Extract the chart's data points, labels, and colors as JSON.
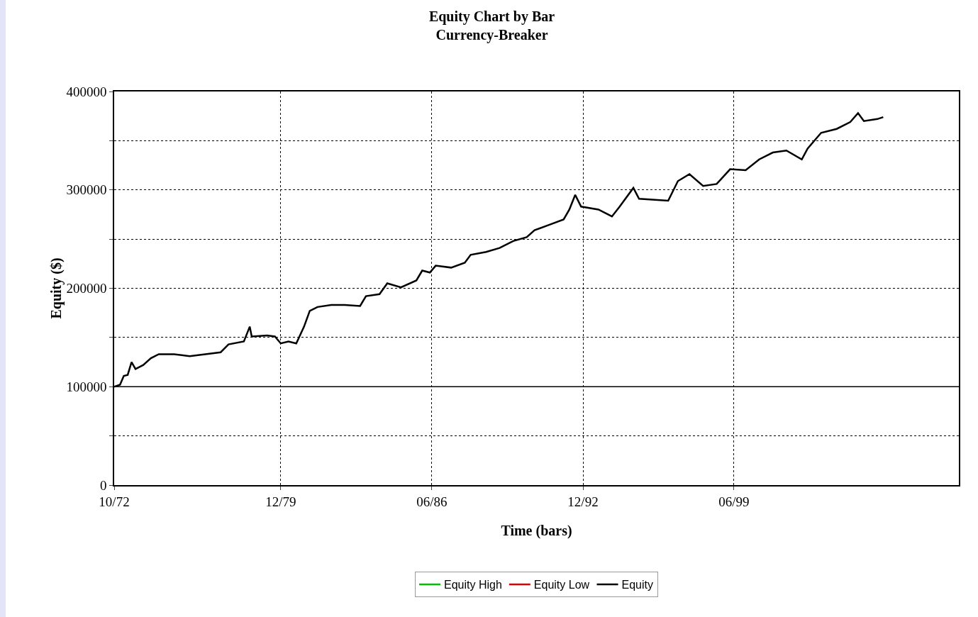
{
  "chart_data": {
    "type": "line",
    "title": "Equity Chart by Bar",
    "subtitle": "Currency-Breaker",
    "xlabel": "Time (bars)",
    "ylabel": "Equity ($)",
    "x": [
      "1972-10",
      "1973-01",
      "1973-03",
      "1973-05",
      "1973-07",
      "1973-09",
      "1974-01",
      "1974-05",
      "1974-09",
      "1975-05",
      "1976-01",
      "1976-09",
      "1977-05",
      "1977-09",
      "1978-05",
      "1978-08",
      "1978-09",
      "1979-05",
      "1979-09",
      "1979-12",
      "1980-04",
      "1980-08",
      "1980-12",
      "1981-03",
      "1981-07",
      "1982-02",
      "1982-09",
      "1983-05",
      "1983-08",
      "1984-03",
      "1984-07",
      "1985-02",
      "1985-10",
      "1986-01",
      "1986-05",
      "1986-08",
      "1987-04",
      "1987-11",
      "1988-02",
      "1988-10",
      "1989-05",
      "1989-12",
      "1990-07",
      "1990-11",
      "1991-06",
      "1992-02",
      "1992-05",
      "1992-08",
      "1992-11",
      "1993-08",
      "1994-03",
      "1994-07",
      "1995-02",
      "1995-05",
      "1996-08",
      "1997-01",
      "1997-07",
      "1998-02",
      "1998-09",
      "1999-04",
      "1999-12",
      "2000-07",
      "2001-02",
      "2001-09",
      "2002-05",
      "2002-08",
      "2003-03",
      "2003-11",
      "2004-06",
      "2004-10",
      "2005-01",
      "2005-08",
      "2005-11"
    ],
    "series": [
      {
        "name": "Equity High",
        "color": "#00c000",
        "values": [
          null,
          null,
          null,
          null,
          null,
          null,
          null,
          null,
          null,
          null,
          null,
          null,
          null,
          null,
          null,
          null,
          null,
          null,
          null,
          null,
          null,
          null,
          null,
          null,
          null,
          null,
          null,
          null,
          null,
          null,
          null,
          null,
          null,
          null,
          null,
          null,
          null,
          null,
          null,
          null,
          null,
          null,
          null,
          null,
          null,
          null,
          null,
          null,
          null,
          null,
          null,
          null,
          null,
          null,
          null,
          null,
          null,
          null,
          null,
          null,
          null,
          null,
          null,
          null,
          null,
          null,
          null,
          null,
          null,
          null,
          null,
          null,
          null
        ]
      },
      {
        "name": "Equity Low",
        "color": "#e00000",
        "values": [
          null,
          null,
          null,
          null,
          null,
          null,
          null,
          null,
          null,
          null,
          null,
          null,
          null,
          null,
          null,
          null,
          null,
          null,
          null,
          null,
          null,
          null,
          null,
          null,
          null,
          null,
          null,
          null,
          null,
          null,
          null,
          null,
          null,
          null,
          null,
          null,
          null,
          null,
          null,
          null,
          null,
          null,
          null,
          null,
          null,
          null,
          null,
          null,
          null,
          null,
          null,
          null,
          null,
          null,
          null,
          null,
          null,
          null,
          null,
          null,
          null,
          null,
          null,
          null,
          null,
          null,
          null,
          null,
          null,
          null,
          null,
          null,
          null
        ]
      },
      {
        "name": "Equity",
        "color": "#000000",
        "values": [
          100000,
          102000,
          111000,
          112000,
          125000,
          118000,
          122000,
          129000,
          133000,
          133000,
          131000,
          133000,
          135000,
          143000,
          146000,
          161000,
          151000,
          152000,
          151000,
          144000,
          146000,
          144000,
          161000,
          177000,
          181000,
          183000,
          183000,
          182000,
          192000,
          194000,
          205000,
          201000,
          208000,
          218000,
          216000,
          223000,
          221000,
          226000,
          234000,
          237000,
          241000,
          248000,
          252000,
          259000,
          264000,
          270000,
          280000,
          295000,
          283000,
          280000,
          273000,
          283000,
          302000,
          291000,
          289000,
          309000,
          316000,
          304000,
          306000,
          321000,
          320000,
          331000,
          338000,
          340000,
          331000,
          342000,
          358000,
          362000,
          369000,
          378000,
          370000,
          372000,
          374000
        ]
      }
    ],
    "xlim": [
      "1972-10",
      "2009-02"
    ],
    "xticks": [
      {
        "value": "1972-10",
        "label": "10/72"
      },
      {
        "value": "1979-12",
        "label": "12/79"
      },
      {
        "value": "1986-06",
        "label": "06/86"
      },
      {
        "value": "1992-12",
        "label": "12/92"
      },
      {
        "value": "1999-06",
        "label": "06/99"
      }
    ],
    "ylim": [
      0,
      400000
    ],
    "yticks": [
      0,
      {
        "value": 50000,
        "label": null
      },
      100000,
      {
        "value": 150000,
        "label": null
      },
      200000,
      {
        "value": 250000,
        "label": null
      },
      300000,
      {
        "value": 350000,
        "label": null
      },
      400000
    ],
    "ref_lines": [
      {
        "axis": "y",
        "value": 100000,
        "color": "#000000",
        "line_style": "solid"
      }
    ],
    "grid": true,
    "legend": "bottom",
    "marker": "none",
    "line_style": "solid"
  }
}
